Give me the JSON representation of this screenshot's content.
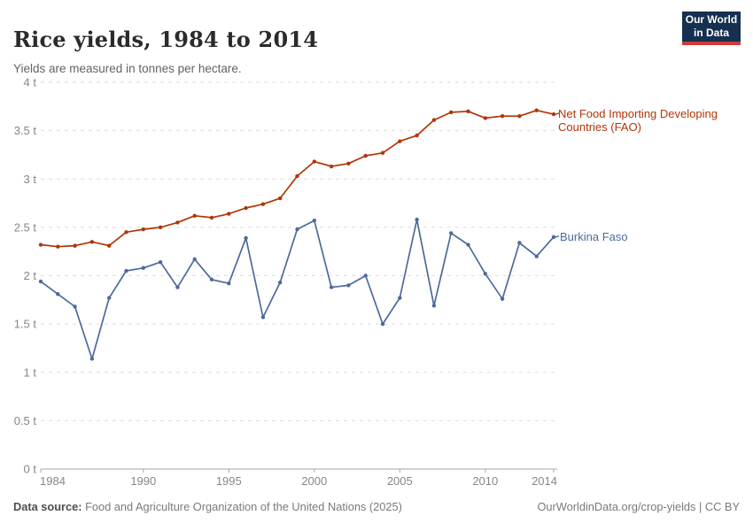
{
  "header": {
    "title": "Rice yields, 1984 to 2014",
    "subtitle": "Yields are measured in tonnes per hectare.",
    "logo": {
      "line1": "Our World",
      "line2": "in Data",
      "bg_color": "#16304f",
      "accent_color": "#cf3b3b"
    }
  },
  "chart_data": {
    "type": "line",
    "title": "Rice yields, 1984 to 2014",
    "xlabel": "",
    "ylabel": "tonnes per hectare",
    "ylim": [
      0,
      4
    ],
    "grid": "horizontal-dashed",
    "legend_position": "right-of-line-ends",
    "x": [
      1984,
      1985,
      1986,
      1987,
      1988,
      1989,
      1990,
      1991,
      1992,
      1993,
      1994,
      1995,
      1996,
      1997,
      1998,
      1999,
      2000,
      2001,
      2002,
      2003,
      2004,
      2005,
      2006,
      2007,
      2008,
      2009,
      2010,
      2011,
      2012,
      2013,
      2014
    ],
    "series": [
      {
        "name": "Net Food Importing Developing Countries (FAO)",
        "color": "#B13507",
        "values": [
          2.32,
          2.3,
          2.31,
          2.35,
          2.31,
          2.45,
          2.48,
          2.5,
          2.55,
          2.62,
          2.6,
          2.64,
          2.7,
          2.74,
          2.8,
          3.03,
          3.18,
          3.13,
          3.16,
          3.24,
          3.27,
          3.39,
          3.45,
          3.61,
          3.69,
          3.7,
          3.63,
          3.65,
          3.65,
          3.71,
          3.67
        ]
      },
      {
        "name": "Burkina Faso",
        "color": "#4C6A9C",
        "values": [
          1.94,
          1.81,
          1.68,
          1.14,
          1.77,
          2.05,
          2.08,
          2.14,
          1.88,
          2.17,
          1.96,
          1.92,
          2.39,
          1.57,
          1.93,
          2.48,
          2.57,
          1.88,
          1.9,
          2.0,
          1.5,
          1.77,
          2.58,
          1.69,
          2.44,
          2.32,
          2.02,
          1.76,
          2.34,
          2.2,
          2.4
        ]
      }
    ],
    "yticks": [
      {
        "value": 4,
        "label": "4 t"
      },
      {
        "value": 3.5,
        "label": "3.5 t"
      },
      {
        "value": 3,
        "label": "3 t"
      },
      {
        "value": 2.5,
        "label": "2.5 t"
      },
      {
        "value": 2,
        "label": "2 t"
      },
      {
        "value": 1.5,
        "label": "1.5 t"
      },
      {
        "value": 1,
        "label": "1 t"
      },
      {
        "value": 0.5,
        "label": "0.5 t"
      },
      {
        "value": 0,
        "label": "0 t"
      }
    ],
    "xticks": [
      {
        "value": 1984,
        "label": "1984"
      },
      {
        "value": 1990,
        "label": "1990"
      },
      {
        "value": 1995,
        "label": "1995"
      },
      {
        "value": 2000,
        "label": "2000"
      },
      {
        "value": 2005,
        "label": "2005"
      },
      {
        "value": 2010,
        "label": "2010"
      },
      {
        "value": 2014,
        "label": "2014"
      }
    ],
    "style_colors": {
      "gridline": "#dedede",
      "axis": "#a6a6a6",
      "tick_label": "#868686"
    }
  },
  "footer": {
    "source_label": "Data source:",
    "source_text": "Food and Agriculture Organization of the United Nations (2025)",
    "link": "OurWorldinData.org/crop-yields",
    "separator": "|",
    "license": "CC BY"
  }
}
